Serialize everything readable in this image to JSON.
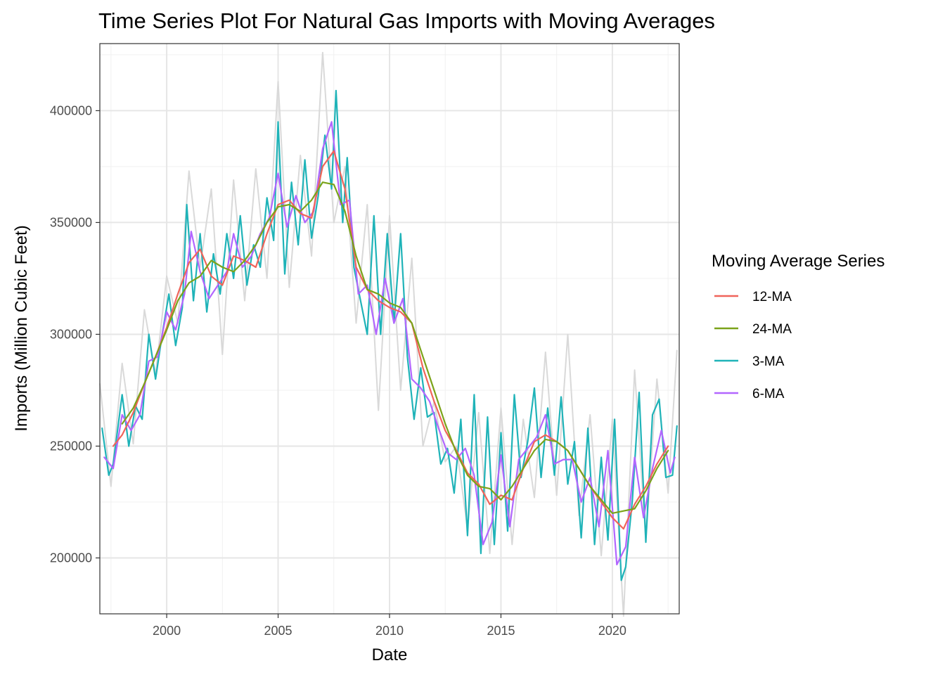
{
  "chart_data": {
    "type": "line",
    "title": "Time Series Plot For Natural Gas Imports with Moving Averages",
    "xlabel": "Date",
    "ylabel": "Imports (Million Cubic Feet)",
    "xlim": [
      1997,
      2023
    ],
    "ylim": [
      175000,
      430000
    ],
    "x_ticks": [
      2000,
      2005,
      2010,
      2015,
      2020
    ],
    "x_tick_labels": [
      "2000",
      "2005",
      "2010",
      "2015",
      "2020"
    ],
    "y_ticks": [
      200000,
      250000,
      300000,
      350000,
      400000
    ],
    "y_tick_labels": [
      "200000",
      "250000",
      "300000",
      "350000",
      "400000"
    ],
    "grid": true,
    "legend_position": "right",
    "legend": {
      "title": "Moving Average Series",
      "entries": [
        "12-MA",
        "24-MA",
        "3-MA",
        "6-MA"
      ]
    },
    "raw_series": {
      "color": "#d9d9d9",
      "x": [
        1997.0,
        1997.5,
        1998.0,
        1998.5,
        1999.0,
        1999.5,
        2000.0,
        2000.5,
        2001.0,
        2001.5,
        2002.0,
        2002.5,
        2003.0,
        2003.5,
        2004.0,
        2004.5,
        2005.0,
        2005.5,
        2006.0,
        2006.5,
        2007.0,
        2007.5,
        2008.0,
        2008.5,
        2009.0,
        2009.5,
        2010.0,
        2010.5,
        2011.0,
        2011.5,
        2012.0,
        2012.5,
        2013.0,
        2013.5,
        2014.0,
        2014.5,
        2015.0,
        2015.5,
        2016.0,
        2016.5,
        2017.0,
        2017.5,
        2018.0,
        2018.5,
        2019.0,
        2019.5,
        2020.0,
        2020.5,
        2021.0,
        2021.5,
        2022.0,
        2022.5,
        2022.9
      ],
      "y": [
        278000,
        232000,
        287000,
        251000,
        311000,
        282000,
        326000,
        305000,
        373000,
        330000,
        365000,
        291000,
        369000,
        315000,
        374000,
        325000,
        413000,
        321000,
        380000,
        335000,
        426000,
        350000,
        375000,
        305000,
        358000,
        266000,
        353000,
        275000,
        334000,
        250000,
        270000,
        243000,
        250000,
        213000,
        265000,
        202000,
        267000,
        206000,
        262000,
        227000,
        292000,
        228000,
        300000,
        219000,
        264000,
        201000,
        262000,
        174000,
        284000,
        208000,
        280000,
        229000,
        293000
      ]
    },
    "series": [
      {
        "name": "3-MA",
        "color": "#1fb3b8",
        "x": [
          1997.1,
          1997.4,
          1997.6,
          1998.0,
          1998.3,
          1998.6,
          1998.9,
          1999.2,
          1999.5,
          1999.8,
          2000.1,
          2000.4,
          2000.7,
          2000.9,
          2001.2,
          2001.5,
          2001.8,
          2002.1,
          2002.4,
          2002.7,
          2003.0,
          2003.3,
          2003.6,
          2003.9,
          2004.2,
          2004.5,
          2004.8,
          2005.0,
          2005.3,
          2005.6,
          2005.9,
          2006.2,
          2006.5,
          2006.8,
          2007.1,
          2007.4,
          2007.6,
          2007.9,
          2008.1,
          2008.4,
          2008.7,
          2009.0,
          2009.3,
          2009.6,
          2009.9,
          2010.2,
          2010.5,
          2010.8,
          2011.1,
          2011.4,
          2011.7,
          2012.0,
          2012.3,
          2012.6,
          2012.9,
          2013.2,
          2013.5,
          2013.8,
          2014.1,
          2014.4,
          2014.7,
          2015.0,
          2015.3,
          2015.6,
          2015.9,
          2016.2,
          2016.5,
          2016.8,
          2017.1,
          2017.4,
          2017.7,
          2018.0,
          2018.3,
          2018.6,
          2018.9,
          2019.2,
          2019.5,
          2019.8,
          2020.1,
          2020.4,
          2020.6,
          2020.9,
          2021.2,
          2021.5,
          2021.8,
          2022.1,
          2022.4,
          2022.7,
          2022.9
        ],
        "y": [
          258000,
          237000,
          242000,
          273000,
          250000,
          268000,
          262000,
          300000,
          280000,
          300000,
          318000,
          295000,
          312000,
          358000,
          315000,
          345000,
          310000,
          336000,
          318000,
          345000,
          325000,
          353000,
          322000,
          340000,
          330000,
          361000,
          342000,
          395000,
          327000,
          368000,
          340000,
          378000,
          343000,
          362000,
          389000,
          365000,
          409000,
          350000,
          379000,
          330000,
          315000,
          300000,
          353000,
          300000,
          345000,
          305000,
          345000,
          290000,
          262000,
          285000,
          263000,
          265000,
          242000,
          249000,
          229000,
          262000,
          210000,
          273000,
          202000,
          263000,
          206000,
          256000,
          212000,
          273000,
          236000,
          252000,
          276000,
          236000,
          267000,
          237000,
          272000,
          233000,
          252000,
          209000,
          258000,
          206000,
          245000,
          208000,
          262000,
          190000,
          196000,
          226000,
          274000,
          207000,
          264000,
          271000,
          236000,
          237000,
          259000
        ]
      },
      {
        "name": "6-MA",
        "color": "#b266ff",
        "x": [
          1997.2,
          1997.6,
          1998.0,
          1998.4,
          1998.8,
          1999.2,
          1999.6,
          2000.0,
          2000.4,
          2000.8,
          2001.1,
          2001.5,
          2001.9,
          2002.3,
          2002.7,
          2003.0,
          2003.4,
          2003.8,
          2004.2,
          2004.6,
          2005.0,
          2005.4,
          2005.8,
          2006.2,
          2006.6,
          2007.0,
          2007.4,
          2007.8,
          2008.2,
          2008.6,
          2009.0,
          2009.4,
          2009.8,
          2010.2,
          2010.6,
          2011.0,
          2011.4,
          2011.8,
          2012.2,
          2012.6,
          2013.0,
          2013.4,
          2013.8,
          2014.2,
          2014.6,
          2015.0,
          2015.4,
          2015.8,
          2016.2,
          2016.6,
          2017.0,
          2017.4,
          2017.8,
          2018.2,
          2018.6,
          2019.0,
          2019.4,
          2019.8,
          2020.2,
          2020.6,
          2021.0,
          2021.4,
          2021.8,
          2022.2,
          2022.6,
          2022.8
        ],
        "y": [
          245000,
          240000,
          264000,
          257000,
          264000,
          288000,
          290000,
          310000,
          302000,
          318000,
          346000,
          328000,
          316000,
          322000,
          328000,
          345000,
          330000,
          335000,
          345000,
          352000,
          372000,
          348000,
          362000,
          350000,
          355000,
          383000,
          395000,
          358000,
          360000,
          318000,
          322000,
          300000,
          325000,
          305000,
          316000,
          280000,
          276000,
          270000,
          258000,
          247000,
          244000,
          249000,
          237000,
          206000,
          216000,
          246000,
          214000,
          244000,
          249000,
          254000,
          264000,
          242000,
          244000,
          244000,
          225000,
          236000,
          214000,
          248000,
          197000,
          205000,
          245000,
          218000,
          240000,
          257000,
          238000,
          245000
        ]
      },
      {
        "name": "12-MA",
        "color": "#f0645a",
        "x": [
          1997.6,
          1998.0,
          1998.5,
          1999.0,
          1999.5,
          2000.0,
          2000.5,
          2001.0,
          2001.5,
          2002.0,
          2002.5,
          2003.0,
          2003.5,
          2004.0,
          2004.5,
          2005.0,
          2005.5,
          2006.0,
          2006.5,
          2007.0,
          2007.5,
          2008.0,
          2008.5,
          2009.0,
          2009.5,
          2010.0,
          2010.5,
          2011.0,
          2011.5,
          2012.0,
          2012.5,
          2013.0,
          2013.5,
          2014.0,
          2014.5,
          2015.0,
          2015.5,
          2016.0,
          2016.5,
          2017.0,
          2017.5,
          2018.0,
          2018.5,
          2019.0,
          2019.5,
          2020.0,
          2020.5,
          2021.0,
          2021.5,
          2022.0,
          2022.5
        ],
        "y": [
          250000,
          255000,
          265000,
          278000,
          290000,
          303000,
          318000,
          332000,
          338000,
          326000,
          322000,
          335000,
          333000,
          330000,
          345000,
          358000,
          360000,
          354000,
          352000,
          375000,
          382000,
          365000,
          330000,
          320000,
          315000,
          312000,
          310000,
          305000,
          285000,
          270000,
          257000,
          248000,
          238000,
          233000,
          224000,
          228000,
          226000,
          240000,
          252000,
          255000,
          252000,
          248000,
          240000,
          232000,
          225000,
          218000,
          213000,
          224000,
          232000,
          242000,
          250000
        ]
      },
      {
        "name": "24-MA",
        "color": "#7ba31a",
        "x": [
          1998.0,
          1998.5,
          1999.0,
          1999.5,
          2000.0,
          2000.5,
          2001.0,
          2001.5,
          2002.0,
          2002.5,
          2003.0,
          2003.5,
          2004.0,
          2004.5,
          2005.0,
          2005.5,
          2006.0,
          2006.5,
          2007.0,
          2007.5,
          2008.0,
          2008.5,
          2009.0,
          2009.5,
          2010.0,
          2010.5,
          2011.0,
          2011.5,
          2012.0,
          2012.5,
          2013.0,
          2013.5,
          2014.0,
          2014.5,
          2015.0,
          2015.5,
          2016.0,
          2016.5,
          2017.0,
          2017.5,
          2018.0,
          2018.5,
          2019.0,
          2019.5,
          2020.0,
          2020.5,
          2021.0,
          2021.5,
          2022.0,
          2022.5
        ],
        "y": [
          260000,
          267000,
          278000,
          290000,
          302000,
          315000,
          323000,
          326000,
          333000,
          330000,
          328000,
          333000,
          340000,
          350000,
          357000,
          358000,
          355000,
          360000,
          368000,
          367000,
          355000,
          335000,
          320000,
          318000,
          314000,
          312000,
          305000,
          290000,
          275000,
          260000,
          247000,
          237000,
          232000,
          231000,
          226000,
          232000,
          240000,
          248000,
          253000,
          252000,
          248000,
          240000,
          232000,
          226000,
          220000,
          221000,
          222000,
          230000,
          240000,
          248000
        ]
      }
    ]
  }
}
